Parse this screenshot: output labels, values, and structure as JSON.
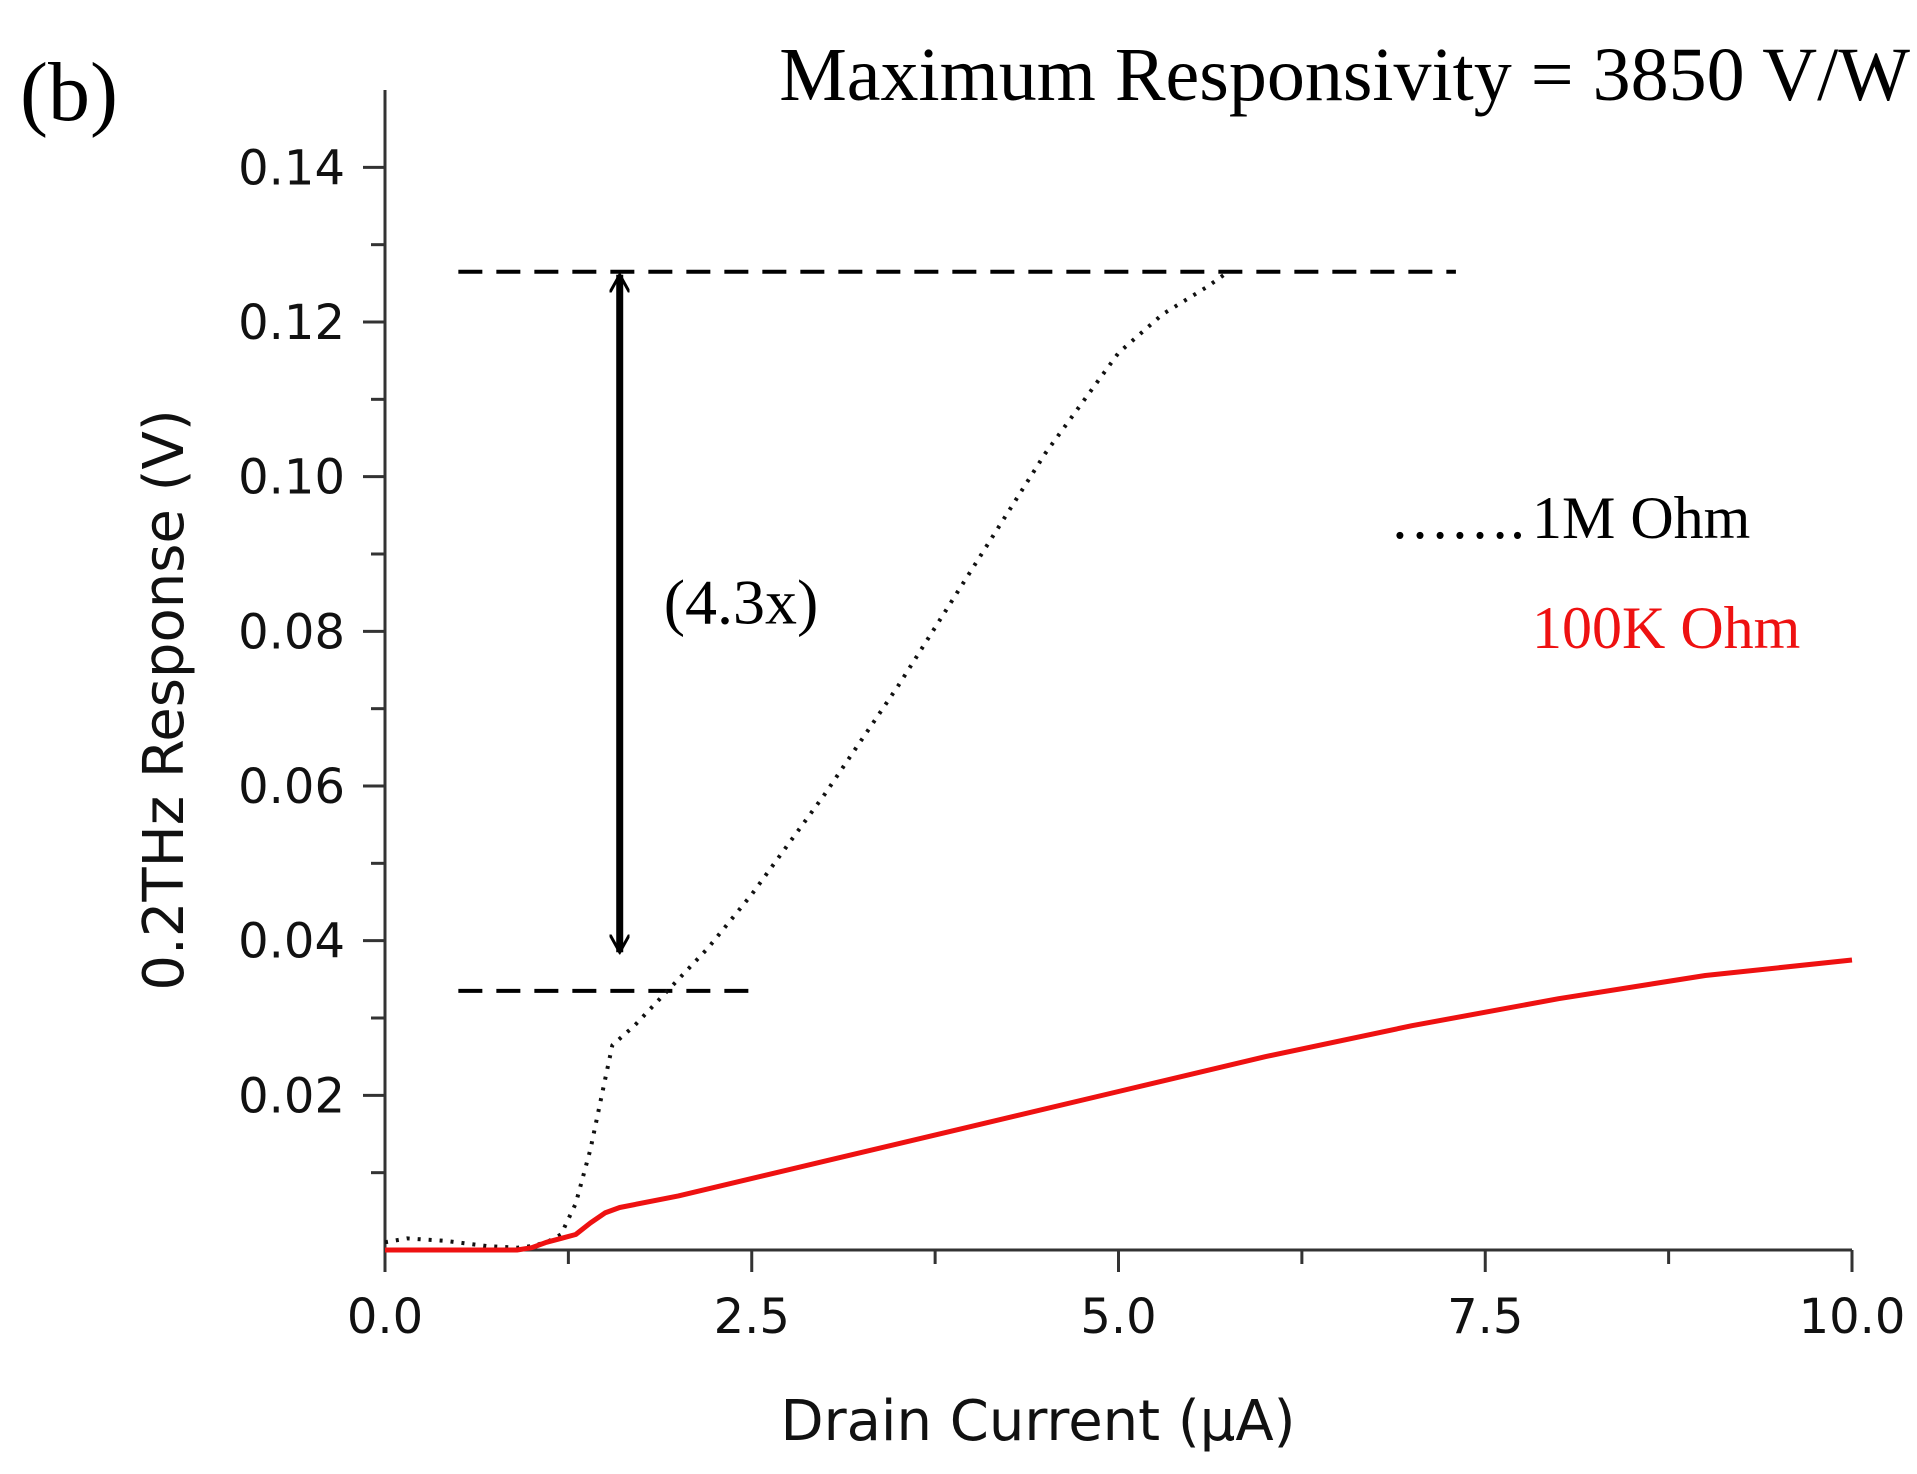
{
  "chart_data": {
    "type": "line",
    "panel_label": "(b)",
    "title": "Maximum Responsivity = 3850 V/W",
    "xlabel": "Drain Current (μA)",
    "ylabel": "0.2THz Response (V)",
    "xlim": [
      0,
      10
    ],
    "ylim": [
      0,
      0.15
    ],
    "x_ticks": [
      0.0,
      2.5,
      5.0,
      7.5,
      10.0
    ],
    "x_tick_labels": [
      "0.0",
      "2.5",
      "5.0",
      "7.5",
      "10.0"
    ],
    "y_ticks": [
      0.02,
      0.04,
      0.06,
      0.08,
      0.1,
      0.12,
      0.14
    ],
    "y_tick_labels": [
      "0.02",
      "0.04",
      "0.06",
      "0.08",
      "0.10",
      "0.12",
      "0.14"
    ],
    "grid": false,
    "series": [
      {
        "name": "1M Ohm",
        "legend_text": "1M Ohm",
        "legend_marker": "…….",
        "style": "dotted",
        "color": "#111111",
        "x": [
          0.0,
          0.15,
          0.4,
          0.7,
          0.9,
          1.0,
          1.1,
          1.2,
          1.3,
          1.4,
          1.5,
          1.55,
          1.7,
          1.9,
          2.2,
          2.5,
          3.0,
          3.5,
          4.0,
          4.5,
          5.0,
          5.3,
          5.6,
          5.75
        ],
        "values": [
          0.001,
          0.0015,
          0.0012,
          0.0005,
          0.0003,
          0.0005,
          0.001,
          0.002,
          0.006,
          0.013,
          0.022,
          0.0265,
          0.029,
          0.033,
          0.039,
          0.046,
          0.059,
          0.073,
          0.088,
          0.103,
          0.116,
          0.121,
          0.1245,
          0.1265
        ]
      },
      {
        "name": "100K Ohm",
        "legend_text": "100K Ohm",
        "style": "solid",
        "color": "#ee1111",
        "x": [
          0.0,
          0.5,
          0.9,
          1.0,
          1.1,
          1.2,
          1.3,
          1.4,
          1.5,
          1.6,
          2.0,
          3.0,
          4.0,
          5.0,
          6.0,
          7.0,
          8.0,
          9.0,
          10.0
        ],
        "values": [
          0.0,
          0.0,
          0.0,
          0.0003,
          0.001,
          0.0015,
          0.002,
          0.0035,
          0.0048,
          0.0055,
          0.007,
          0.0115,
          0.016,
          0.0205,
          0.025,
          0.029,
          0.0325,
          0.0355,
          0.0375
        ]
      }
    ],
    "reference_lines": [
      {
        "y": 0.1265,
        "x_start": 0.5,
        "x_end": 7.3,
        "style": "dashed"
      },
      {
        "y": 0.0335,
        "x_start": 0.5,
        "x_end": 2.5,
        "style": "dashed"
      }
    ],
    "annotations": [
      {
        "type": "double-arrow",
        "x": 1.6,
        "y_start": 0.1265,
        "y_end": 0.0385
      },
      {
        "type": "text",
        "text": "(4.3x)",
        "x": 1.9,
        "y": 0.081
      }
    ]
  }
}
